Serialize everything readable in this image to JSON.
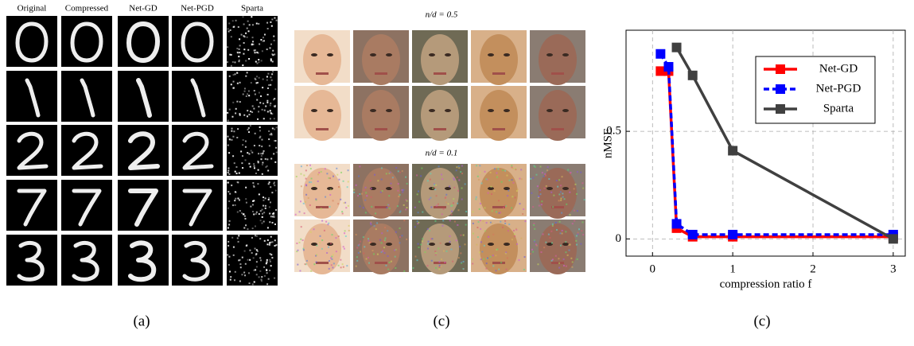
{
  "panel_a": {
    "columns": [
      "Original",
      "Compressed",
      "Net-GD",
      "Net-PGD",
      "Sparta"
    ],
    "caption": "(a)"
  },
  "panel_b": {
    "labels": [
      "n/d = 0.5",
      "n/d = 0.1"
    ],
    "caption": "(c)"
  },
  "chart_data": {
    "type": "line",
    "caption": "(c)",
    "x_label": "compression ratio f",
    "y_label": "nMSE",
    "x": [
      0.1,
      0.2,
      0.3,
      0.5,
      1,
      3
    ],
    "series": [
      {
        "name": "Net-GD",
        "color": "#ff0000",
        "dashed": false,
        "values": [
          0.78,
          0.78,
          0.05,
          0.01,
          0.01,
          0.01
        ]
      },
      {
        "name": "Net-PGD",
        "color": "#0000ff",
        "dashed": true,
        "values": [
          0.86,
          0.8,
          0.07,
          0.02,
          0.02,
          0.02
        ]
      },
      {
        "name": "Sparta",
        "color": "#404040",
        "dashed": false,
        "values": [
          null,
          null,
          0.89,
          0.76,
          0.41,
          0.0
        ]
      }
    ],
    "xlim": [
      -0.33,
      3.15
    ],
    "ylim": [
      -0.08,
      0.97
    ],
    "xticks": [
      0,
      1,
      2,
      3
    ],
    "yticks": [
      0,
      0.5
    ],
    "grid": true,
    "legend": "upper right"
  }
}
